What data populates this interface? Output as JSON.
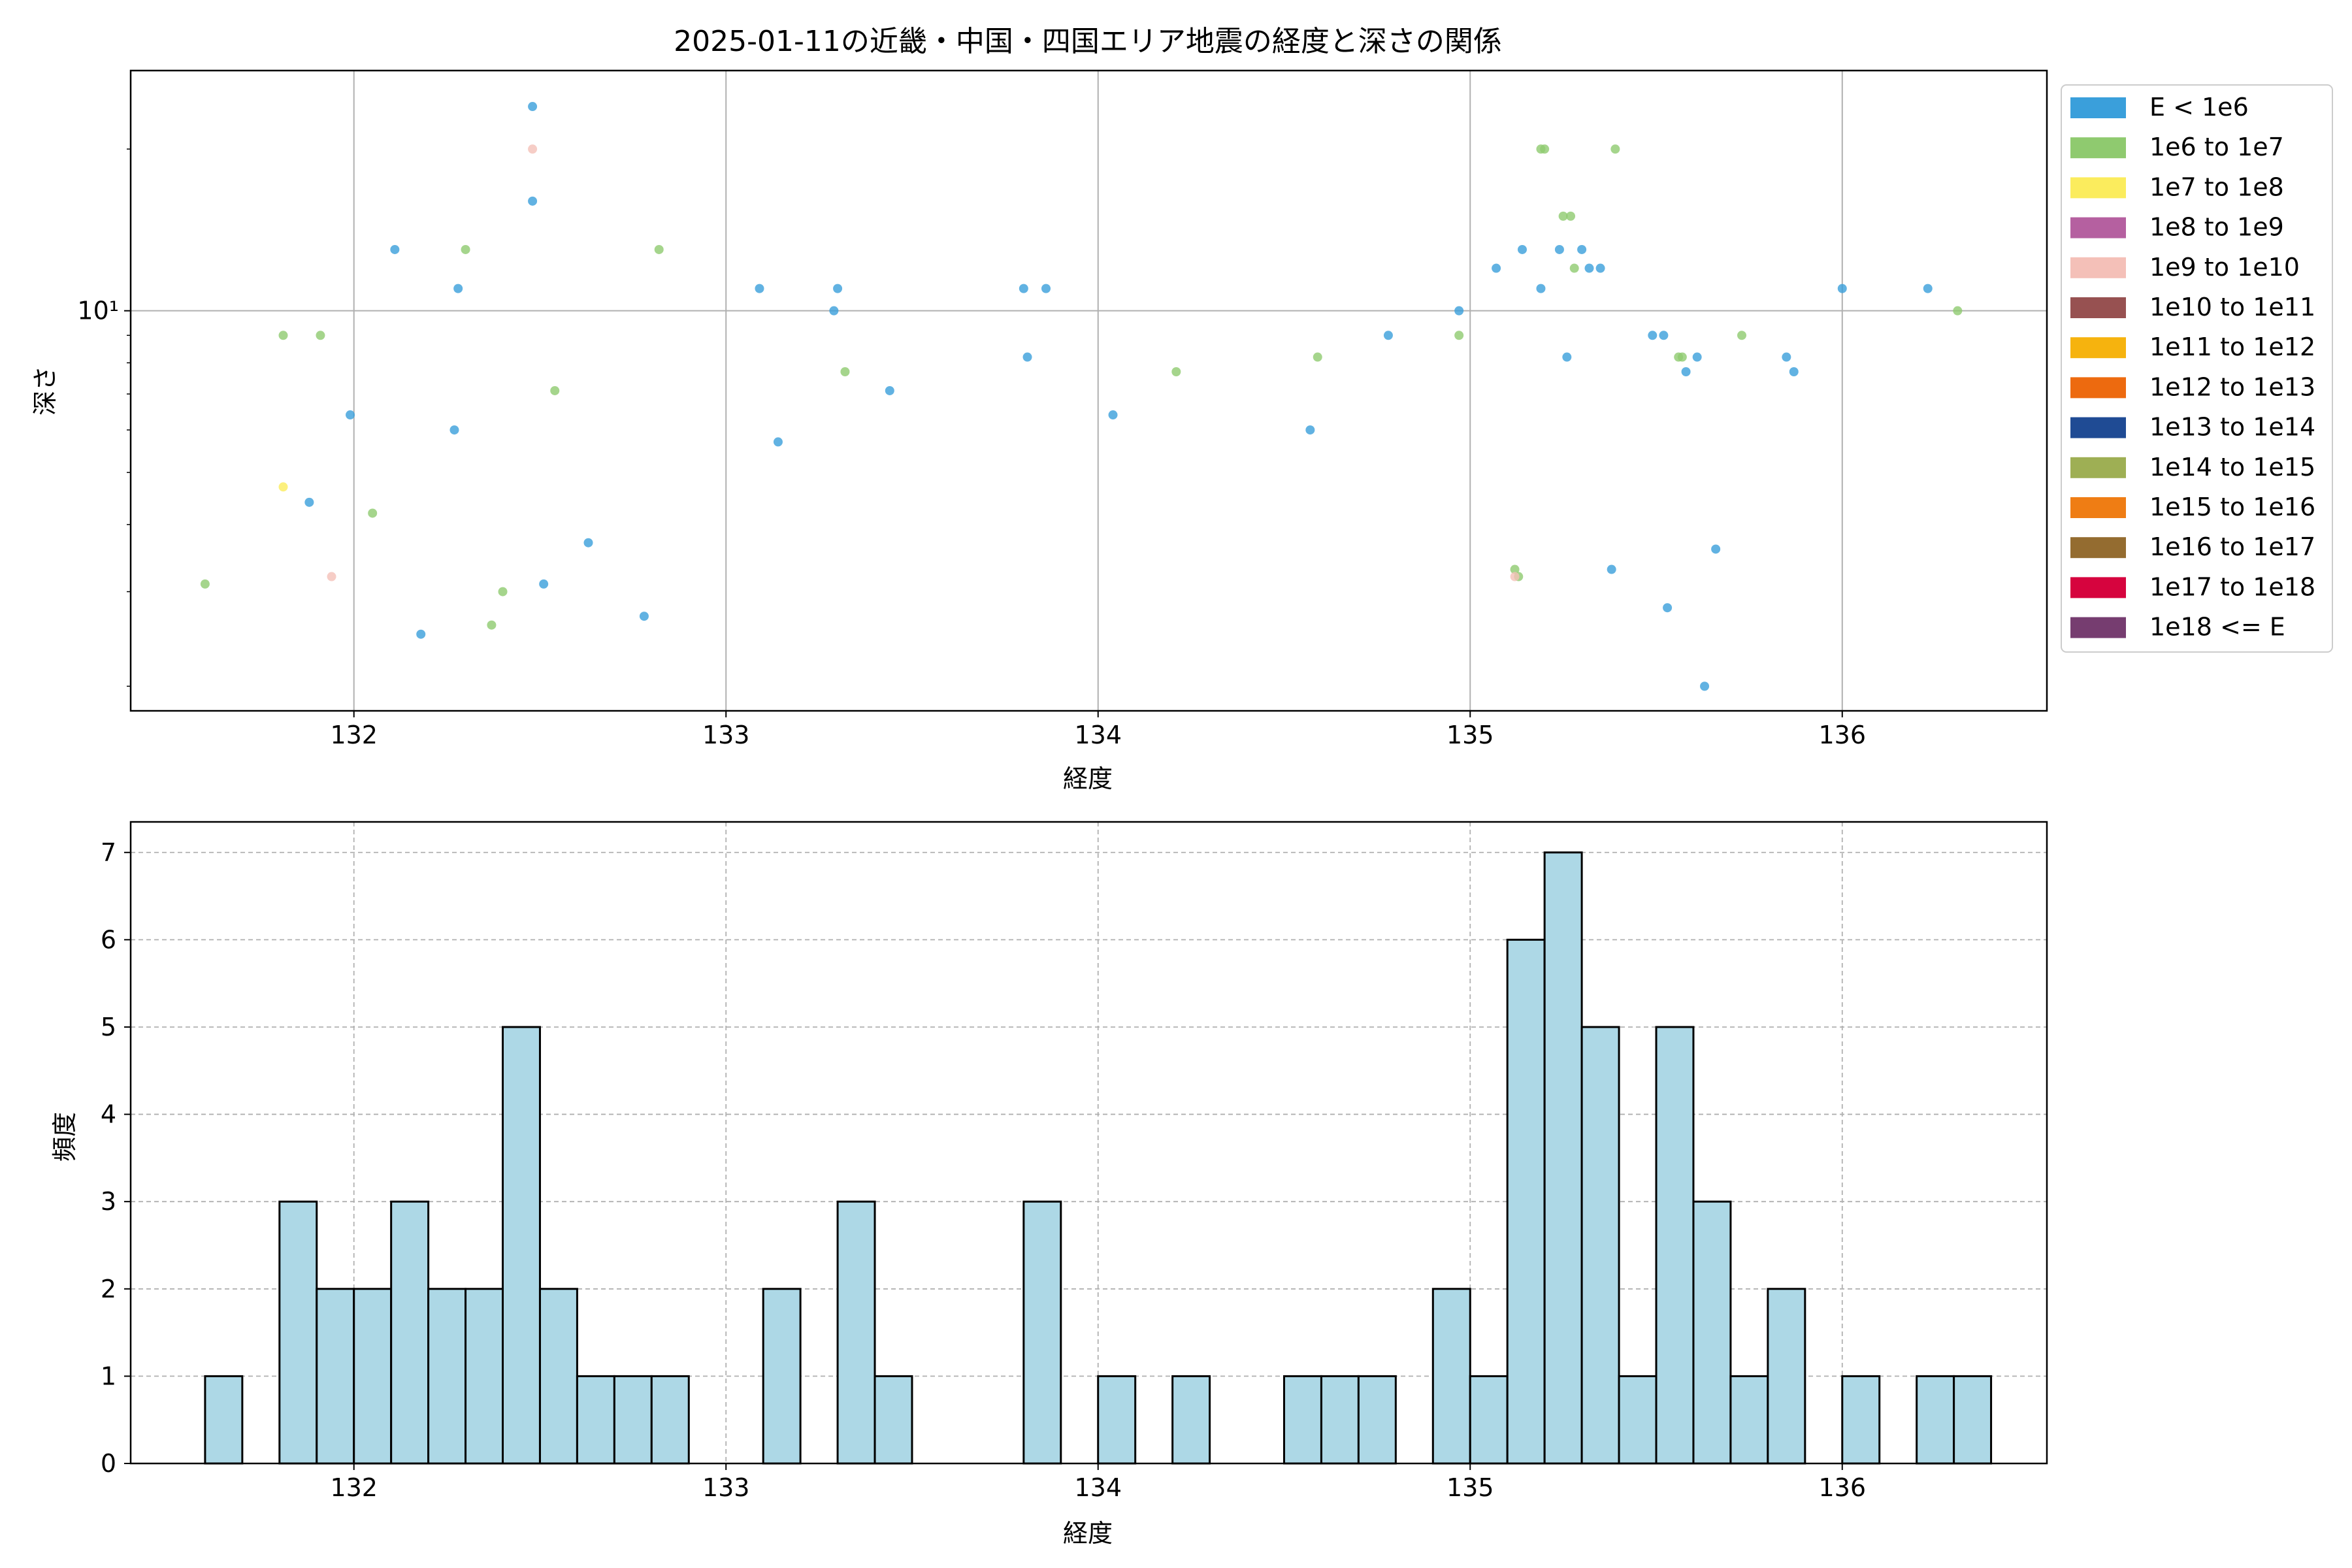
{
  "chart_data": [
    {
      "type": "scatter",
      "title": "2025-01-11の近畿・中国・四国エリア地震の経度と深さの関係",
      "xlabel": "経度",
      "ylabel": "深さ",
      "x_scale": "linear",
      "y_scale": "log",
      "xlim": [
        131.4,
        136.55
      ],
      "ylim": [
        1.8,
        28
      ],
      "x_ticks": [
        132,
        133,
        134,
        135,
        136
      ],
      "x_tick_labels": [
        "132",
        "133",
        "134",
        "135",
        "136"
      ],
      "y_ticks": [
        10
      ],
      "y_tick_labels": [
        "10¹"
      ],
      "grid": true,
      "legend_position": "outside-right",
      "legend": [
        {
          "label": "E < 1e6",
          "color": "#3a9fdb"
        },
        {
          "label": "1e6 to 1e7",
          "color": "#8fca6f"
        },
        {
          "label": "1e7 to 1e8",
          "color": "#fbec5d"
        },
        {
          "label": "1e8 to 1e9",
          "color": "#b560a0"
        },
        {
          "label": "1e9 to 1e10",
          "color": "#f4c0b8"
        },
        {
          "label": "1e10 to 1e11",
          "color": "#975151"
        },
        {
          "label": "1e11 to 1e12",
          "color": "#f6b30e"
        },
        {
          "label": "1e12 to 1e13",
          "color": "#ed6a0f"
        },
        {
          "label": "1e13 to 1e14",
          "color": "#1f4b94"
        },
        {
          "label": "1e14 to 1e15",
          "color": "#9eaf54"
        },
        {
          "label": "1e15 to 1e16",
          "color": "#ef7d14"
        },
        {
          "label": "1e16 to 1e17",
          "color": "#946c30"
        },
        {
          "label": "1e17 to 1e18",
          "color": "#d6043e"
        },
        {
          "label": "1e18 <= E",
          "color": "#763d70"
        }
      ],
      "series": [
        {
          "name": "E < 1e6",
          "color": "#3a9fdb",
          "points": [
            [
              132.48,
              24
            ],
            [
              132.48,
              16
            ],
            [
              132.11,
              13
            ],
            [
              132.28,
              11
            ],
            [
              131.99,
              6.4
            ],
            [
              132.27,
              6
            ],
            [
              131.88,
              4.4
            ],
            [
              132.63,
              3.7
            ],
            [
              132.51,
              3.1
            ],
            [
              132.78,
              2.7
            ],
            [
              132.18,
              2.5
            ],
            [
              133.09,
              11
            ],
            [
              133.3,
              11
            ],
            [
              133.29,
              10
            ],
            [
              133.44,
              7.1
            ],
            [
              133.14,
              5.7
            ],
            [
              133.8,
              11
            ],
            [
              133.86,
              11
            ],
            [
              133.81,
              8.2
            ],
            [
              134.04,
              6.4
            ],
            [
              134.57,
              6
            ],
            [
              134.78,
              9
            ],
            [
              134.97,
              10
            ],
            [
              135.07,
              12
            ],
            [
              135.14,
              13
            ],
            [
              135.19,
              11
            ],
            [
              135.24,
              13
            ],
            [
              135.3,
              13
            ],
            [
              135.32,
              12
            ],
            [
              135.35,
              12
            ],
            [
              135.26,
              8.2
            ],
            [
              135.49,
              9
            ],
            [
              135.52,
              9
            ],
            [
              135.58,
              7.7
            ],
            [
              135.61,
              8.2
            ],
            [
              135.85,
              8.2
            ],
            [
              135.87,
              7.7
            ],
            [
              135.38,
              3.3
            ],
            [
              135.53,
              2.8
            ],
            [
              135.66,
              3.6
            ],
            [
              135.63,
              2
            ],
            [
              136.0,
              11
            ],
            [
              136.23,
              11
            ]
          ]
        },
        {
          "name": "1e6 to 1e7",
          "color": "#8fca6f",
          "points": [
            [
              131.6,
              3.1
            ],
            [
              131.81,
              9
            ],
            [
              131.91,
              9
            ],
            [
              132.05,
              4.2
            ],
            [
              132.3,
              13
            ],
            [
              132.37,
              2.6
            ],
            [
              132.4,
              3
            ],
            [
              132.54,
              7.1
            ],
            [
              132.82,
              13
            ],
            [
              133.32,
              7.7
            ],
            [
              134.21,
              7.7
            ],
            [
              134.59,
              8.2
            ],
            [
              134.97,
              9
            ],
            [
              135.12,
              3.3
            ],
            [
              135.13,
              3.2
            ],
            [
              135.19,
              20
            ],
            [
              135.2,
              20
            ],
            [
              135.25,
              15
            ],
            [
              135.27,
              15
            ],
            [
              135.28,
              12
            ],
            [
              135.39,
              20
            ],
            [
              135.56,
              8.2
            ],
            [
              135.57,
              8.2
            ],
            [
              135.73,
              9
            ],
            [
              136.31,
              10
            ]
          ]
        },
        {
          "name": "1e7 to 1e8",
          "color": "#fbec5d",
          "points": [
            [
              131.81,
              4.7
            ]
          ]
        },
        {
          "name": "1e9 to 1e10",
          "color": "#f4c0b8",
          "points": [
            [
              132.48,
              20
            ],
            [
              131.94,
              3.2
            ],
            [
              135.12,
              3.2
            ]
          ]
        }
      ]
    },
    {
      "type": "bar",
      "chart_kind": "histogram",
      "xlabel": "経度",
      "ylabel": "頻度",
      "xlim": [
        131.4,
        136.55
      ],
      "ylim": [
        0,
        7.35
      ],
      "x_ticks": [
        132,
        133,
        134,
        135,
        136
      ],
      "x_tick_labels": [
        "132",
        "133",
        "134",
        "135",
        "136"
      ],
      "y_ticks": [
        0,
        1,
        2,
        3,
        4,
        5,
        6,
        7
      ],
      "y_tick_labels": [
        "0",
        "1",
        "2",
        "3",
        "4",
        "5",
        "6",
        "7"
      ],
      "grid": true,
      "bar_color": "#add8e6",
      "bin_start": 131.6,
      "bin_width": 0.1,
      "values": [
        1,
        0,
        3,
        2,
        2,
        3,
        2,
        2,
        5,
        2,
        1,
        1,
        1,
        0,
        0,
        2,
        0,
        3,
        1,
        0,
        0,
        0,
        3,
        0,
        1,
        0,
        1,
        0,
        0,
        1,
        1,
        1,
        0,
        2,
        1,
        6,
        7,
        5,
        1,
        5,
        3,
        1,
        2,
        0,
        1,
        0,
        1,
        1
      ]
    }
  ]
}
